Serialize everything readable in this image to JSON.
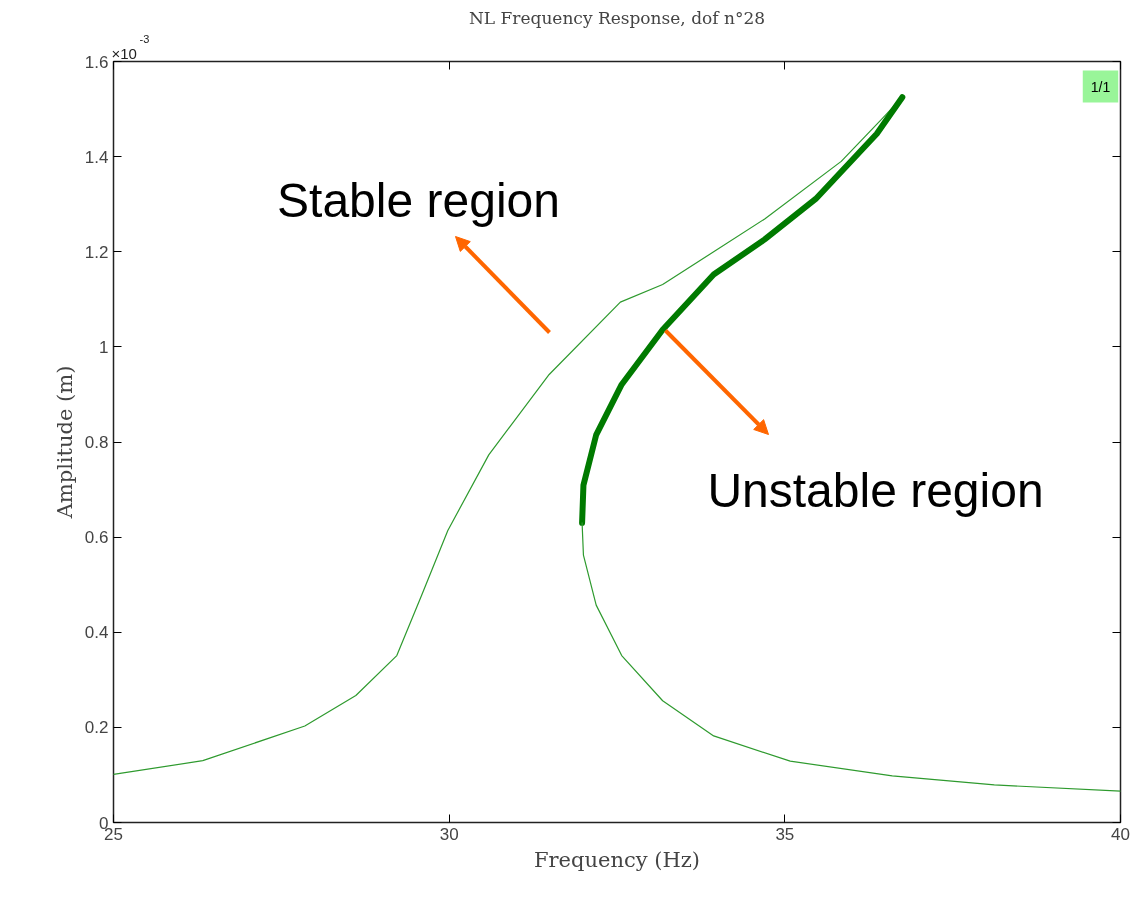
{
  "chart_data": {
    "type": "line",
    "title": "NL Frequency Response, dof n°28",
    "xlabel": "Frequency (Hz)",
    "ylabel": "Amplitude (m)",
    "xlim": [
      25,
      40
    ],
    "xticks": [
      25,
      30,
      35,
      40
    ],
    "ylim": [
      0,
      1.6
    ],
    "yticks": [
      0,
      0.2,
      0.4,
      0.6,
      0.8,
      1,
      1.2,
      1.4,
      1.6
    ],
    "grid": false,
    "marker": "none",
    "line_style": "solid",
    "series": [
      {
        "color": "#2e9a2e",
        "x": [
          25,
          26.33,
          27.85,
          28.61,
          29.22,
          29.59,
          29.98,
          30.59,
          31.49,
          32.55,
          33.18,
          34.7,
          35.84,
          36.45,
          36.75
        ],
        "values": [
          0.101,
          0.13,
          0.203,
          0.267,
          0.351,
          0.478,
          0.614,
          0.773,
          0.942,
          1.094,
          1.131,
          1.269,
          1.39,
          1.48,
          1.525
        ]
      },
      {
        "type": "line",
        "color": "#007a00",
        "x": [
          36.75,
          36.37,
          35.46,
          34.7,
          33.94,
          33.18,
          32.57,
          32.19,
          32.0,
          31.98
        ],
        "values": [
          1.525,
          1.448,
          1.311,
          1.226,
          1.152,
          1.036,
          0.921,
          0.815,
          0.709,
          0.63
        ]
      },
      {
        "color": "#2e9a2e",
        "x": [
          31.98,
          32.0,
          32.19,
          32.57,
          33.18,
          33.94,
          35.08,
          36.6,
          38.12,
          40.0
        ],
        "values": [
          0.63,
          0.562,
          0.457,
          0.351,
          0.256,
          0.182,
          0.129,
          0.098,
          0.079,
          0.066
        ]
      }
    ],
    "annotations": [
      "Stable region",
      "Unstable region",
      "×10$^{-3}$",
      "1/1"
    ]
  }
}
